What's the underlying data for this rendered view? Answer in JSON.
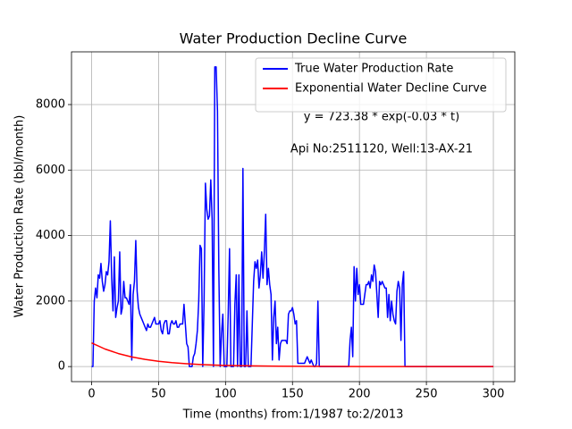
{
  "chart_data": {
    "type": "line",
    "title": "Water Production Decline Curve",
    "xlabel": "Time (months) from:1/1987 to:2/2013",
    "ylabel": "Water Production Rate (bbl/month)",
    "annotations": [
      "y = 723.38 * exp(-0.03 * t)",
      "Api No:2511120, Well:13-AX-21"
    ],
    "xlim": [
      -15,
      316
    ],
    "ylim": [
      -460,
      9610
    ],
    "xticks": [
      0,
      50,
      100,
      150,
      200,
      250,
      300
    ],
    "yticks": [
      0,
      2000,
      4000,
      6000,
      8000
    ],
    "grid": true,
    "legend": "upper right",
    "series": [
      {
        "name": "True Water Production Rate",
        "color": "#0000ff",
        "x": [
          0,
          1,
          2,
          3,
          4,
          5,
          6,
          7,
          8,
          9,
          10,
          11,
          12,
          13,
          14,
          15,
          16,
          17,
          18,
          19,
          20,
          21,
          22,
          23,
          24,
          25,
          26,
          27,
          28,
          29,
          30,
          31,
          32,
          33,
          34,
          35,
          36,
          37,
          38,
          39,
          40,
          41,
          42,
          43,
          44,
          45,
          46,
          47,
          48,
          49,
          50,
          51,
          52,
          53,
          54,
          55,
          56,
          57,
          58,
          59,
          60,
          61,
          62,
          63,
          64,
          65,
          66,
          67,
          68,
          69,
          70,
          71,
          72,
          73,
          74,
          75,
          76,
          77,
          78,
          79,
          80,
          81,
          82,
          83,
          84,
          85,
          86,
          87,
          88,
          89,
          90,
          91,
          92,
          93,
          94,
          95,
          96,
          97,
          98,
          99,
          100,
          101,
          102,
          103,
          104,
          105,
          106,
          107,
          108,
          109,
          110,
          111,
          112,
          113,
          114,
          115,
          116,
          117,
          118,
          119,
          120,
          121,
          122,
          123,
          124,
          125,
          126,
          127,
          128,
          129,
          130,
          131,
          132,
          133,
          134,
          135,
          136,
          137,
          138,
          139,
          140,
          141,
          142,
          143,
          144,
          145,
          146,
          147,
          148,
          149,
          150,
          151,
          152,
          153,
          154,
          155,
          156,
          157,
          158,
          159,
          160,
          161,
          162,
          163,
          164,
          165,
          166,
          167,
          168,
          169,
          170,
          192,
          193,
          194,
          195,
          196,
          197,
          198,
          199,
          200,
          201,
          202,
          203,
          204,
          205,
          206,
          207,
          208,
          209,
          210,
          211,
          212,
          213,
          214,
          215,
          216,
          217,
          218,
          219,
          220,
          221,
          222,
          223,
          224,
          225,
          226,
          227,
          228,
          229,
          230,
          231,
          232,
          233,
          234,
          300
        ],
        "values": [
          0,
          0,
          2000,
          2400,
          2100,
          2800,
          2700,
          3150,
          2600,
          2300,
          2500,
          2900,
          2800,
          3200,
          4450,
          2700,
          1700,
          3350,
          1500,
          1800,
          2000,
          3500,
          1600,
          1800,
          2600,
          2100,
          2100,
          2000,
          1900,
          2500,
          200,
          2200,
          2600,
          3850,
          2300,
          1800,
          1600,
          1500,
          1400,
          1300,
          1200,
          1100,
          1300,
          1200,
          1200,
          1300,
          1400,
          1500,
          1300,
          1300,
          1300,
          1400,
          1100,
          1000,
          1300,
          1400,
          1400,
          1000,
          1000,
          1300,
          1400,
          1300,
          1300,
          1400,
          1200,
          1200,
          1300,
          1300,
          1300,
          1900,
          1300,
          700,
          600,
          0,
          0,
          0,
          300,
          400,
          700,
          1100,
          2000,
          3700,
          3600,
          0,
          2000,
          5600,
          4800,
          4500,
          4600,
          5700,
          4500,
          0,
          9150,
          9150,
          7800,
          3000,
          0,
          1000,
          1600,
          0,
          0,
          0,
          1600,
          3600,
          0,
          0,
          0,
          1900,
          2800,
          0,
          2800,
          0,
          0,
          6050,
          0,
          0,
          1700,
          0,
          0,
          0,
          1300,
          2600,
          3200,
          3000,
          3250,
          2400,
          2800,
          3500,
          2700,
          3500,
          4650,
          2500,
          3000,
          2500,
          2200,
          200,
          1500,
          2000,
          700,
          1200,
          200,
          700,
          800,
          800,
          800,
          800,
          700,
          1600,
          1700,
          1700,
          1800,
          1600,
          1300,
          1400,
          100,
          100,
          100,
          100,
          100,
          100,
          200,
          300,
          200,
          100,
          200,
          100,
          0,
          0,
          100,
          2000,
          0,
          0,
          800,
          1200,
          300,
          3050,
          2000,
          3000,
          2200,
          2500,
          1900,
          1900,
          1900,
          2200,
          2500,
          2500,
          2600,
          2400,
          2800,
          2600,
          3100,
          2900,
          2200,
          1500,
          2600,
          2500,
          2600,
          2500,
          2400,
          2400,
          1500,
          2200,
          1400,
          2000,
          1600,
          1400,
          1300,
          2300,
          2600,
          2400,
          800,
          2500,
          2900,
          0,
          0
        ]
      },
      {
        "name": "Exponential Water Decline Curve",
        "color": "#ff0000",
        "x": [
          0,
          10,
          20,
          30,
          40,
          50,
          60,
          70,
          80,
          90,
          100,
          120,
          140,
          160,
          200,
          250,
          300
        ],
        "values": [
          723,
          536,
          397,
          294,
          218,
          161,
          120,
          89,
          66,
          49,
          36,
          20,
          11,
          6,
          2,
          0.4,
          0.1
        ]
      }
    ]
  }
}
